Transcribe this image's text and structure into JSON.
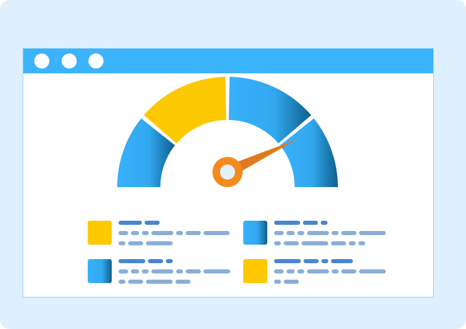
{
  "colors": {
    "background": "#def0fd",
    "titlebar": "#3bb3fd",
    "blue": "#38b1fb",
    "blue_dark": "#0d5f8c",
    "yellow": "#fcc900",
    "needle": "#f48a1e",
    "heading_bar": "#4a86d0",
    "text_bar": "#8aaed8"
  },
  "window": {
    "controls": [
      "close-dot",
      "minimize-dot",
      "maximize-dot"
    ]
  },
  "gauge": {
    "value_percent": 86,
    "segments": [
      {
        "from_percent": 0,
        "to_percent": 22,
        "color": "blue"
      },
      {
        "from_percent": 22,
        "to_percent": 50,
        "color": "yellow"
      },
      {
        "from_percent": 50,
        "to_percent": 78,
        "color": "blue"
      },
      {
        "from_percent": 78,
        "to_percent": 100,
        "color": "blue"
      }
    ]
  },
  "legend": [
    {
      "swatch": "yellow",
      "lines": [
        [
          34,
          22
        ],
        [
          14,
          12,
          10,
          32,
          10,
          22,
          38
        ],
        [
          10,
          22,
          39
        ]
      ]
    },
    {
      "swatch": "blue",
      "lines": [
        [
          38,
          22,
          10
        ],
        [
          14,
          12,
          10,
          32,
          10,
          22,
          39
        ],
        [
          10,
          22,
          39,
          22,
          10,
          10
        ]
      ]
    },
    {
      "swatch": "blue",
      "lines": [
        [
          39,
          22,
          10
        ],
        [
          14,
          12,
          10,
          32,
          10,
          22,
          39
        ],
        [
          10,
          22,
          39,
          22
        ]
      ]
    },
    {
      "swatch": "yellow",
      "lines": [
        [
          39,
          22,
          10,
          32
        ],
        [
          14,
          12,
          10,
          32,
          10,
          22,
          39
        ],
        [
          10,
          22
        ]
      ]
    }
  ]
}
